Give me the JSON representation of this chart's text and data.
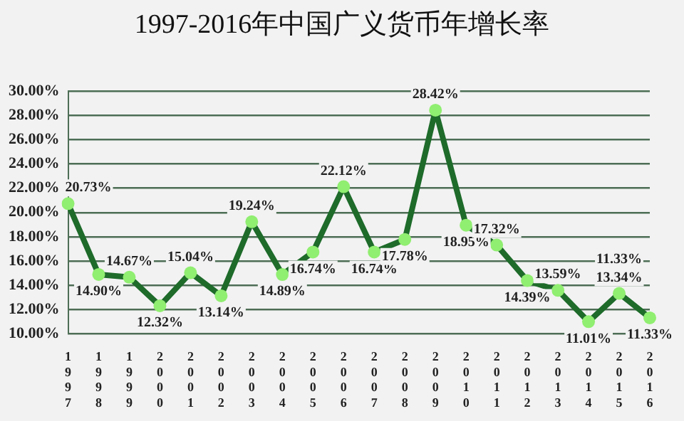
{
  "chart_data": {
    "type": "line",
    "title": "1997-2016年中国广义货币年增长率",
    "categories": [
      "1997",
      "1998",
      "1999",
      "2000",
      "2001",
      "2002",
      "2003",
      "2004",
      "2005",
      "2006",
      "2007",
      "2008",
      "2009",
      "2010",
      "2011",
      "2012",
      "2013",
      "2014",
      "2015",
      "2016"
    ],
    "series": [
      {
        "color": "#1e6b2a",
        "values": [
          20.73,
          14.9,
          14.67,
          12.32,
          15.04,
          13.14,
          19.24,
          14.89,
          16.74,
          22.12,
          16.74,
          17.78,
          28.42,
          18.95,
          17.32,
          14.39,
          13.59,
          11.01,
          13.34,
          11.33
        ],
        "value_labels": [
          "20.73%",
          "14.90%",
          "14.67%",
          "12.32%",
          "15.04%",
          "13.14%",
          "19.24%",
          "14.89%",
          "16.74%",
          "22.12%",
          "16.74%",
          "17.78%",
          "28.42%",
          "18.95%",
          "17.32%",
          "14.39%",
          "13.59%",
          "11.01%",
          "13.34%",
          "11.33%"
        ]
      }
    ],
    "annotations": [
      {
        "text": "11.33%",
        "x": "2015",
        "y": 13.34
      }
    ],
    "marker": "circle",
    "colors": [
      "#90ee70",
      "#90ee70",
      "#90ee70",
      "#90ee70",
      "#90ee70",
      "#90ee70",
      "#90ee70",
      "#90ee70",
      "#90ee70",
      "#90ee70",
      "#90ee70",
      "#90ee70",
      "#90ee70",
      "#90ee70",
      "#90ee70",
      "#90ee70",
      "#90ee70",
      "#90ee70",
      "#90ee70",
      "#90ee70"
    ],
    "ylim": [
      10,
      30
    ],
    "yticks": [
      {
        "value": 10,
        "label": "10.00%"
      },
      {
        "value": 12,
        "label": "12.00%"
      },
      {
        "value": 14,
        "label": "14.00%"
      },
      {
        "value": 16,
        "label": "16.00%"
      },
      {
        "value": 18,
        "label": "18.00%"
      },
      {
        "value": 20,
        "label": "20.00%"
      },
      {
        "value": 22,
        "label": "22.00%"
      },
      {
        "value": 24,
        "label": "24.00%"
      },
      {
        "value": 26,
        "label": "26.00%"
      },
      {
        "value": 28,
        "label": "28.00%"
      },
      {
        "value": 30,
        "label": "30.00%"
      }
    ],
    "grid": "y",
    "legend": false
  }
}
